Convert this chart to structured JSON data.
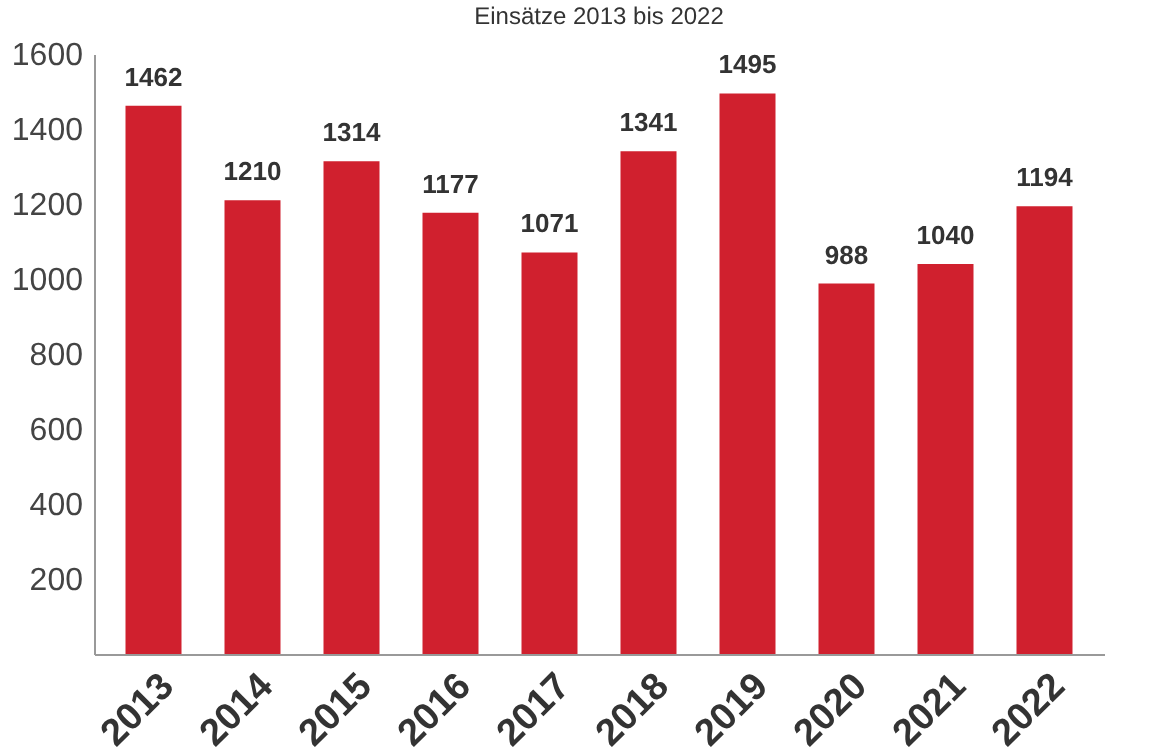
{
  "chart_data": {
    "type": "bar",
    "title": "Einsätze 2013 bis 2022",
    "categories": [
      "2013",
      "2014",
      "2015",
      "2016",
      "2017",
      "2018",
      "2019",
      "2020",
      "2021",
      "2022"
    ],
    "values": [
      1462,
      1210,
      1314,
      1177,
      1071,
      1341,
      1495,
      988,
      1040,
      1194
    ],
    "color": "#d0202e",
    "ylim": [
      0,
      1600
    ],
    "yticks": [
      200,
      400,
      600,
      800,
      1000,
      1200,
      1400,
      1600
    ],
    "grid": false,
    "data_labels": true
  }
}
